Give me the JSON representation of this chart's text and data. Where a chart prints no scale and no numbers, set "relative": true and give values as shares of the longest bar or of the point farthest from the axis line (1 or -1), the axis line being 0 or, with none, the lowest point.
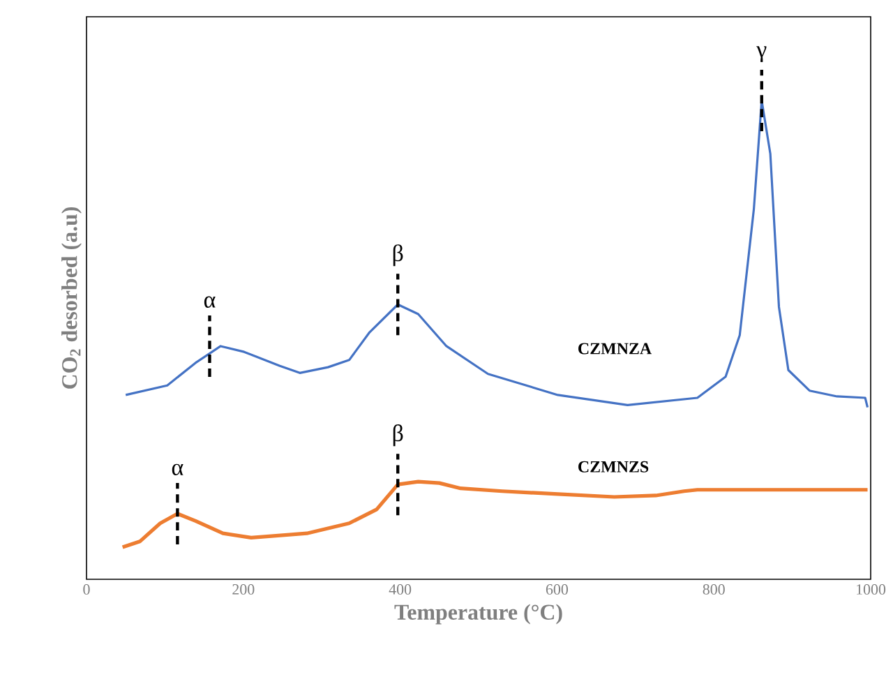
{
  "chart_data": {
    "type": "line",
    "relative": true,
    "legend": false,
    "marker": "none",
    "line_style": "solid",
    "xlabel": "Temperature (°C)",
    "ylabel": "CO$_{2}$ desorbed (a.u)",
    "xlim": [
      0,
      1000
    ],
    "xticks": [
      0,
      200,
      400,
      600,
      800,
      1000
    ],
    "series": [
      {
        "name": "CZMNZA",
        "color": "#4472c4",
        "x": [
          50,
          103,
          139,
          171,
          201,
          246,
          272,
          308,
          335,
          361,
          397,
          423,
          459,
          512,
          601,
          690,
          779,
          815,
          833,
          851,
          861,
          872,
          883,
          895,
          922,
          957,
          993,
          996
        ],
        "values": [
          0.385,
          0.405,
          0.452,
          0.487,
          0.475,
          0.446,
          0.431,
          0.443,
          0.458,
          0.516,
          0.574,
          0.554,
          0.487,
          0.429,
          0.385,
          0.364,
          0.379,
          0.423,
          0.51,
          0.773,
          1.0,
          0.889,
          0.569,
          0.437,
          0.394,
          0.382,
          0.379,
          0.359
        ]
      },
      {
        "name": "CZMNZS",
        "color": "#ed7d31",
        "x": [
          46,
          68,
          94,
          116,
          139,
          174,
          210,
          281,
          335,
          370,
          397,
          423,
          450,
          477,
          530,
          601,
          673,
          726,
          762,
          779,
          886,
          996
        ],
        "values": [
          0.067,
          0.079,
          0.117,
          0.137,
          0.122,
          0.096,
          0.087,
          0.096,
          0.117,
          0.146,
          0.198,
          0.204,
          0.201,
          0.19,
          0.184,
          0.178,
          0.172,
          0.175,
          0.184,
          0.187,
          0.187,
          0.187
        ]
      }
    ],
    "annotations": [
      {
        "text": "α",
        "x": 157,
        "y": 0.487
      },
      {
        "text": "β",
        "x": 397,
        "y": 0.574
      },
      {
        "text": "γ",
        "x": 861,
        "y": 1.0
      },
      {
        "text": "α",
        "x": 116,
        "y": 0.137
      },
      {
        "text": "β",
        "x": 397,
        "y": 0.198
      }
    ]
  }
}
